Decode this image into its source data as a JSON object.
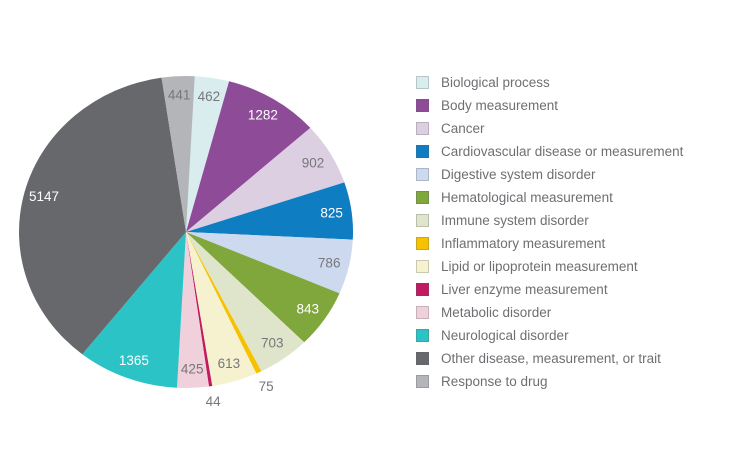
{
  "chart_data": {
    "type": "pie",
    "title": "",
    "legend_position": "right",
    "start_angle_deg": 3,
    "geometry_note": "flat pie, values labeled on slices, small slices labeled outside",
    "value_label_color_light_slices": "#76777b",
    "value_label_color_dark_slices": "#ffffff",
    "slices": [
      {
        "label": "Biological process",
        "value": 462,
        "color": "#d9edef",
        "label_color": "#76777b"
      },
      {
        "label": "Body measurement",
        "value": 1282,
        "color": "#8e4b97",
        "label_color": "#ffffff"
      },
      {
        "label": "Cancer",
        "value": 902,
        "color": "#ddcfe2",
        "label_color": "#76777b"
      },
      {
        "label": "Cardiovascular disease or measurement",
        "value": 825,
        "color": "#0f7dc2",
        "label_color": "#ffffff"
      },
      {
        "label": "Digestive system disorder",
        "value": 786,
        "color": "#cdd9ee",
        "label_color": "#76777b"
      },
      {
        "label": "Hematological measurement",
        "value": 843,
        "color": "#7fa73c",
        "label_color": "#ffffff"
      },
      {
        "label": "Immune system disorder",
        "value": 703,
        "color": "#dfe5cb",
        "label_color": "#76777b"
      },
      {
        "label": "Inflammatory measurement",
        "value": 75,
        "color": "#f6c200",
        "label_color": "#76777b"
      },
      {
        "label": "Lipid or lipoprotein measurement",
        "value": 613,
        "color": "#f6f2cf",
        "label_color": "#76777b"
      },
      {
        "label": "Liver enzyme measurement",
        "value": 44,
        "color": "#c11a61",
        "label_color": "#76777b"
      },
      {
        "label": "Metabolic disorder",
        "value": 425,
        "color": "#f0d0da",
        "label_color": "#76777b"
      },
      {
        "label": "Neurological disorder",
        "value": 1365,
        "color": "#2cc3c6",
        "label_color": "#ffffff"
      },
      {
        "label": "Other disease, measurement, or trait",
        "value": 5147,
        "color": "#66686c",
        "label_color": "#ffffff"
      },
      {
        "label": "Response to drug",
        "value": 441,
        "color": "#b3b5b8",
        "label_color": "#76777b"
      }
    ]
  }
}
